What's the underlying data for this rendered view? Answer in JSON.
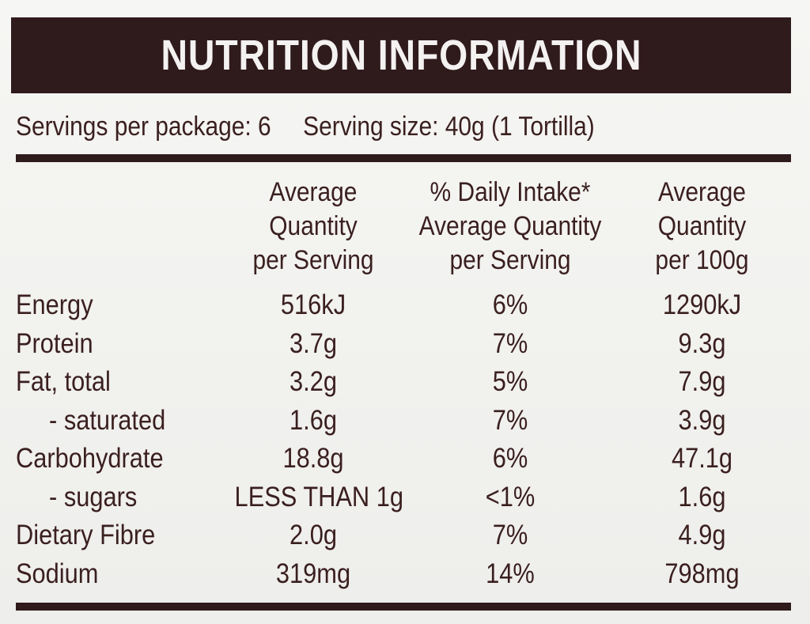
{
  "title": "NUTRITION INFORMATION",
  "servings": {
    "per_package": "Servings per package: 6",
    "size": "Serving size: 40g (1 Tortilla)"
  },
  "columns": [
    [
      "Average",
      "Quantity",
      "per Serving"
    ],
    [
      "% Daily Intake*",
      "Average Quantity",
      "per Serving"
    ],
    [
      "Average",
      "Quantity",
      "per 100g"
    ]
  ],
  "rows": [
    {
      "label": "Energy",
      "per_serving": "516kJ",
      "daily_intake": "6%",
      "per_100g": "1290kJ"
    },
    {
      "label": "Protein",
      "per_serving": "3.7g",
      "daily_intake": "7%",
      "per_100g": "9.3g"
    },
    {
      "label": "Fat, total",
      "per_serving": "3.2g",
      "daily_intake": "5%",
      "per_100g": "7.9g"
    },
    {
      "label": "- saturated",
      "per_serving": "1.6g",
      "daily_intake": "7%",
      "per_100g": "3.9g"
    },
    {
      "label": "Carbohydrate",
      "per_serving": "18.8g",
      "daily_intake": "6%",
      "per_100g": "47.1g"
    },
    {
      "label": "- sugars",
      "per_serving": "LESS THAN 1g",
      "daily_intake": "<1%",
      "per_100g": "1.6g"
    },
    {
      "label": "Dietary Fibre",
      "per_serving": "2.0g",
      "daily_intake": "7%",
      "per_100g": "4.9g"
    },
    {
      "label": "Sodium",
      "per_serving": "319mg",
      "daily_intake": "14%",
      "per_100g": "798mg"
    }
  ],
  "colors": {
    "ink": "#3a1f1f",
    "bar": "#2f1a1c",
    "background": "#f3f3f1"
  }
}
